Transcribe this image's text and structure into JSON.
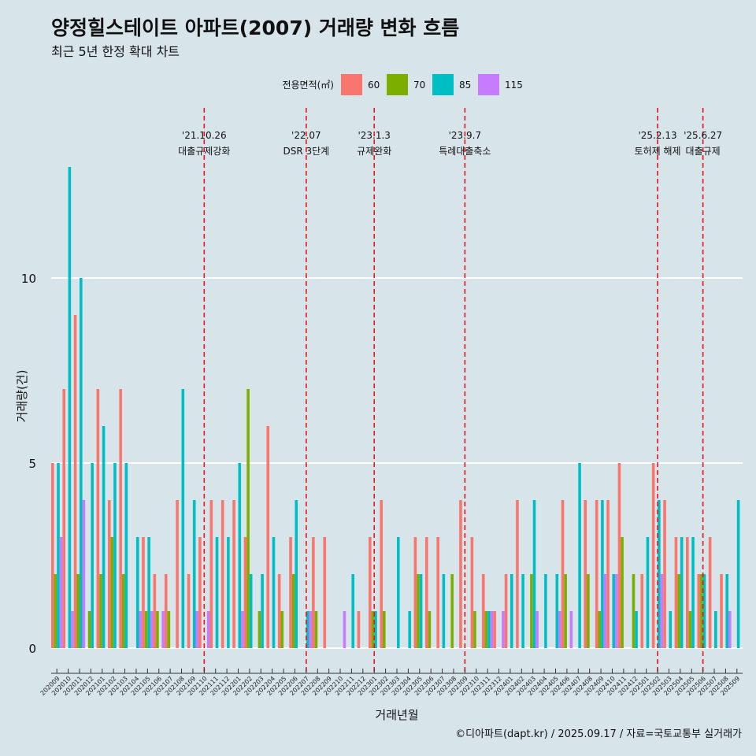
{
  "title": "양정힐스테이트 아파트(2007) 거래량 변화 흐름",
  "subtitle": "최근 5년 한정 확대 차트",
  "caption": "©디아파트(dapt.kr) / 2025.09.17 / 자료=국토교통부 실거래가",
  "chart_data": {
    "type": "bar",
    "title": "양정힐스테이트 아파트(2007) 거래량 변화 흐름",
    "xlabel": "거래년월",
    "ylabel": "거래량(건)",
    "ylim": [
      -0.6,
      13.5
    ],
    "yticks": [
      0,
      5,
      10
    ],
    "grid": true,
    "legend": {
      "title": "전용면적(㎡)",
      "position": "top"
    },
    "categories": [
      "202009",
      "202010",
      "202011",
      "202012",
      "202101",
      "202102",
      "202103",
      "202104",
      "202105",
      "202106",
      "202107",
      "202108",
      "202109",
      "202110",
      "202111",
      "202112",
      "202201",
      "202202",
      "202203",
      "202204",
      "202205",
      "202206",
      "202207",
      "202208",
      "202209",
      "202210",
      "202211",
      "202212",
      "202301",
      "202302",
      "202303",
      "202304",
      "202305",
      "202306",
      "202307",
      "202308",
      "202309",
      "202310",
      "202311",
      "202312",
      "202401",
      "202402",
      "202403",
      "202404",
      "202405",
      "202406",
      "202407",
      "202408",
      "202409",
      "202410",
      "202411",
      "202412",
      "202501",
      "202502",
      "202503",
      "202504",
      "202505",
      "202506",
      "202507",
      "202508",
      "202509"
    ],
    "series": [
      {
        "name": "60",
        "color": "#f8766d",
        "values": [
          5,
          7,
          9,
          0,
          7,
          4,
          7,
          0,
          3,
          2,
          2,
          4,
          2,
          3,
          4,
          4,
          4,
          3,
          0,
          6,
          2,
          3,
          0,
          3,
          3,
          0,
          0,
          1,
          3,
          4,
          0,
          0,
          3,
          3,
          3,
          0,
          4,
          3,
          2,
          1,
          2,
          4,
          0,
          0,
          0,
          4,
          0,
          4,
          4,
          4,
          5,
          0,
          2,
          5,
          4,
          3,
          3,
          2,
          3,
          2,
          0
        ]
      },
      {
        "name": "70",
        "color": "#7cae00",
        "values": [
          2,
          0,
          2,
          1,
          2,
          3,
          2,
          0,
          1,
          1,
          1,
          0,
          0,
          0,
          0,
          0,
          0,
          7,
          1,
          0,
          1,
          2,
          0,
          1,
          0,
          0,
          0,
          0,
          1,
          1,
          0,
          0,
          2,
          1,
          0,
          2,
          0,
          1,
          1,
          0,
          0,
          0,
          2,
          0,
          0,
          2,
          0,
          2,
          1,
          0,
          3,
          2,
          0,
          0,
          0,
          2,
          1,
          2,
          0,
          0,
          0
        ]
      },
      {
        "name": "85",
        "color": "#00bfc4",
        "values": [
          5,
          13,
          10,
          5,
          6,
          5,
          5,
          3,
          3,
          0,
          0,
          7,
          4,
          0,
          3,
          3,
          5,
          2,
          2,
          3,
          0,
          4,
          1,
          0,
          0,
          0,
          2,
          0,
          1,
          0,
          3,
          1,
          2,
          0,
          2,
          0,
          0,
          0,
          1,
          0,
          2,
          2,
          4,
          2,
          2,
          0,
          5,
          0,
          4,
          2,
          0,
          1,
          3,
          4,
          1,
          3,
          3,
          2,
          1,
          2,
          4
        ]
      },
      {
        "name": "115",
        "color": "#c77cff",
        "values": [
          3,
          1,
          4,
          0,
          0,
          0,
          0,
          1,
          1,
          1,
          0,
          0,
          1,
          1,
          0,
          0,
          1,
          0,
          0,
          0,
          0,
          0,
          1,
          0,
          0,
          1,
          0,
          0,
          0,
          0,
          0,
          0,
          0,
          0,
          0,
          0,
          0,
          0,
          1,
          1,
          0,
          0,
          1,
          0,
          1,
          1,
          0,
          0,
          2,
          2,
          0,
          0,
          0,
          2,
          0,
          0,
          0,
          0,
          0,
          1,
          0
        ]
      }
    ],
    "annotations": [
      {
        "date": "'21.10.26",
        "label": "대출규제강화",
        "at": "202110"
      },
      {
        "date": "'22.07",
        "label": "DSR 3단계",
        "at": "202207"
      },
      {
        "date": "'23.1.3",
        "label": "규제완화",
        "at": "202301"
      },
      {
        "date": "'23.9.7",
        "label": "특례대출축소",
        "at": "202309"
      },
      {
        "date": "'25.2.13",
        "label": "토허제 해제",
        "at": "202502"
      },
      {
        "date": "'25.6.27",
        "label": "대출규제",
        "at": "202506"
      }
    ]
  }
}
